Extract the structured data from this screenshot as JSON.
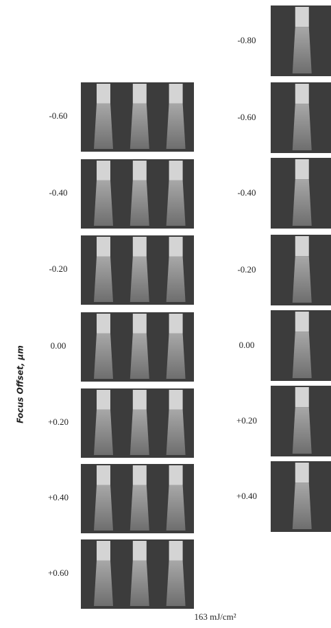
{
  "axis_label": "Focus Offset, μm",
  "left_column": {
    "rows": [
      "-0.60",
      "-0.40",
      "-0.20",
      "0.00",
      "+0.20",
      "+0.40",
      "+0.60"
    ]
  },
  "right_column": {
    "rows": [
      "-0.80",
      "-0.60",
      "-0.40",
      "-0.20",
      "0.00",
      "+0.20",
      "+0.40"
    ]
  },
  "dose_label": "163 mJ/cm²"
}
